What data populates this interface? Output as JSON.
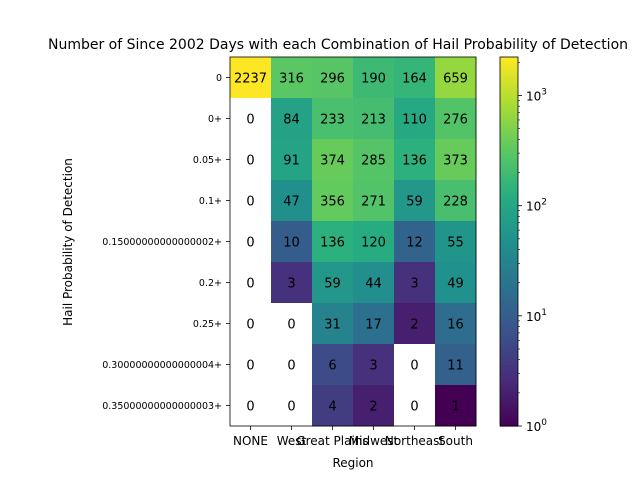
{
  "chart_data": {
    "type": "heatmap",
    "title": "Number of Since 2002 Days with each Combination of Hail Probability of Detection",
    "xlabel": "Region",
    "ylabel": "Hail Probability of Detection",
    "x_categories": [
      "NONE",
      "West",
      "Great Plains",
      "Midwest",
      "Northeast",
      "South"
    ],
    "y_categories": [
      "0",
      "0+",
      "0.05+",
      "0.1+",
      "0.15000000000000002+",
      "0.2+",
      "0.25+",
      "0.30000000000000004+",
      "0.35000000000000003+"
    ],
    "values": [
      [
        2237,
        316,
        296,
        190,
        164,
        659
      ],
      [
        0,
        84,
        233,
        213,
        110,
        276
      ],
      [
        0,
        91,
        374,
        285,
        136,
        373
      ],
      [
        0,
        47,
        356,
        271,
        59,
        228
      ],
      [
        0,
        10,
        136,
        120,
        12,
        55
      ],
      [
        0,
        3,
        59,
        44,
        3,
        49
      ],
      [
        0,
        0,
        31,
        17,
        2,
        16
      ],
      [
        0,
        0,
        6,
        3,
        0,
        11
      ],
      [
        0,
        0,
        4,
        2,
        0,
        1
      ]
    ],
    "colorbar": {
      "scale": "log",
      "colormap": "viridis",
      "range": [
        1,
        2237
      ],
      "tick_values": [
        1,
        10,
        100,
        1000
      ],
      "tick_labels": [
        "10^0",
        "10^1",
        "10^2",
        "10^3"
      ]
    },
    "zero_color": "#ffffff",
    "grid": false
  }
}
